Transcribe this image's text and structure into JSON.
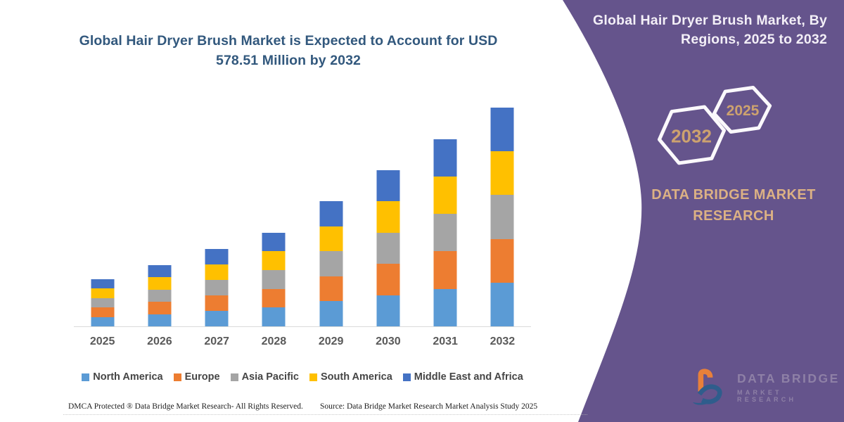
{
  "page": {
    "background": "#ffffff",
    "accent_purple": "#65548C"
  },
  "chart": {
    "title": "Global Hair Dryer Brush Market is Expected to Account for USD 578.51 Million by 2032",
    "title_color": "#32587D"
  },
  "chart_data": {
    "type": "bar",
    "stacked": true,
    "title": "Global Hair Dryer Brush Market is Expected to Account for USD 578.51 Million by 2032",
    "unit": "USD Million",
    "categories": [
      "2025",
      "2026",
      "2027",
      "2028",
      "2029",
      "2030",
      "2031",
      "2032"
    ],
    "series": [
      {
        "name": "North America",
        "color": "#5B9BD5",
        "values": [
          25.0,
          32.6,
          41.2,
          49.6,
          66.3,
          82.5,
          99.2,
          115.7
        ]
      },
      {
        "name": "Europe",
        "color": "#ED7D31",
        "values": [
          25.0,
          32.6,
          41.2,
          49.6,
          66.3,
          82.5,
          99.2,
          115.7
        ]
      },
      {
        "name": "Asia Pacific",
        "color": "#A5A5A5",
        "values": [
          25.0,
          32.6,
          41.2,
          49.6,
          66.3,
          82.5,
          99.2,
          115.7
        ]
      },
      {
        "name": "South America",
        "color": "#FFC000",
        "values": [
          25.0,
          32.6,
          41.2,
          49.6,
          66.3,
          82.5,
          99.2,
          115.7
        ]
      },
      {
        "name": "Middle East and Africa",
        "color": "#4472C4",
        "values": [
          25.0,
          32.6,
          41.2,
          49.6,
          66.3,
          82.5,
          99.2,
          115.7
        ]
      }
    ],
    "totals": [
      125.2,
      163.1,
      205.9,
      248.0,
      331.6,
      412.4,
      496.0,
      578.5
    ],
    "xlabel": "",
    "ylabel": "",
    "ylim": [
      0,
      600
    ],
    "grid": false,
    "legend_position": "bottom",
    "axis_label_color": "#595959",
    "axis_line_color": "#D9D9D9"
  },
  "panel": {
    "title": "Global Hair Dryer Brush Market, By Regions, 2025 to 2032",
    "hexagon_large": "2032",
    "hexagon_small": "2025",
    "brand_heading": "DATA BRIDGE MARKET RESEARCH",
    "hexagon_text_color": "#CDA26F",
    "brand_heading_color": "#DCB184"
  },
  "logo": {
    "line1": "DATA BRIDGE",
    "line2": "MARKET RESEARCH"
  },
  "footer": {
    "left": "DMCA Protected ® Data Bridge Market Research-  All Rights Reserved.",
    "right": "Source: Data Bridge Market Research  Market Analysis Study 2025"
  }
}
